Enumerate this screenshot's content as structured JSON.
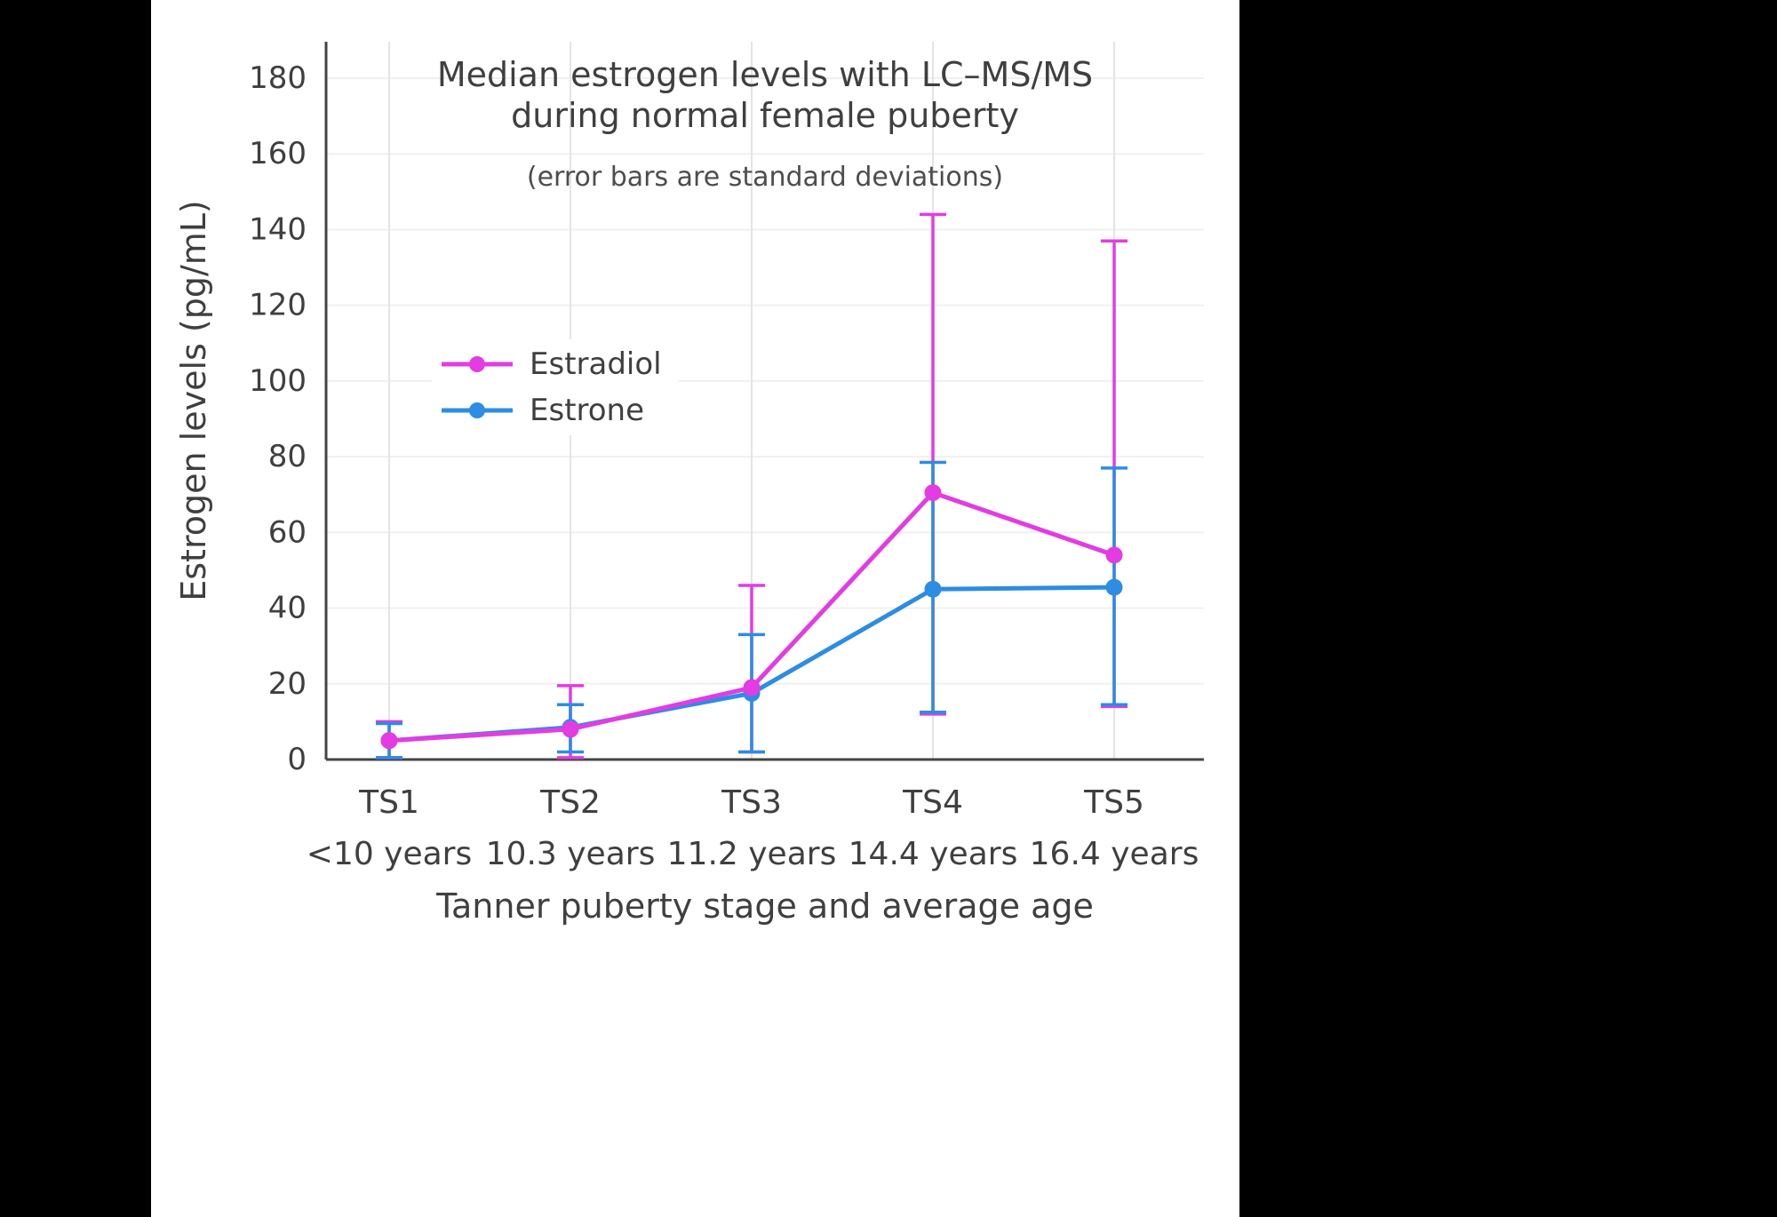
{
  "chart_data": {
    "type": "line",
    "title_line1": "Median estrogen levels with LC–MS/MS",
    "title_line2": "during normal female puberty",
    "subtitle": "(error bars are standard deviations)",
    "xlabel": "Tanner puberty stage and average age",
    "ylabel": "Estrogen levels (pg/mL)",
    "categories": [
      "TS1",
      "TS2",
      "TS3",
      "TS4",
      "TS5"
    ],
    "category_ages": [
      "<10 years",
      "10.3 years",
      "11.2 years",
      "14.4 years",
      "16.4 years"
    ],
    "yticks": [
      0,
      20,
      40,
      60,
      80,
      100,
      120,
      140,
      160,
      180
    ],
    "ylim": [
      0,
      190
    ],
    "grid": true,
    "legend_position": "inside-left",
    "series": [
      {
        "name": "Estradiol",
        "color": "#e23ce2",
        "values": [
          5,
          8,
          19,
          70.5,
          54
        ],
        "err_low": [
          0.5,
          0.5,
          2,
          12,
          14
        ],
        "err_high": [
          10,
          19.5,
          46,
          144,
          137
        ]
      },
      {
        "name": "Estrone",
        "color": "#2d8ce4",
        "values": [
          5,
          8.5,
          17.5,
          45,
          45.5
        ],
        "err_low": [
          0.5,
          2,
          2,
          12.5,
          14.5
        ],
        "err_high": [
          9.5,
          14.5,
          33,
          78.5,
          77
        ]
      }
    ],
    "colors": {
      "axis": "#444444",
      "grid_vertical": "#e4e4e4",
      "grid_horizontal": "#f0f0f0",
      "text": "#3f3f3f",
      "panel_background": "#ffffff",
      "page_background": "#000000"
    }
  }
}
